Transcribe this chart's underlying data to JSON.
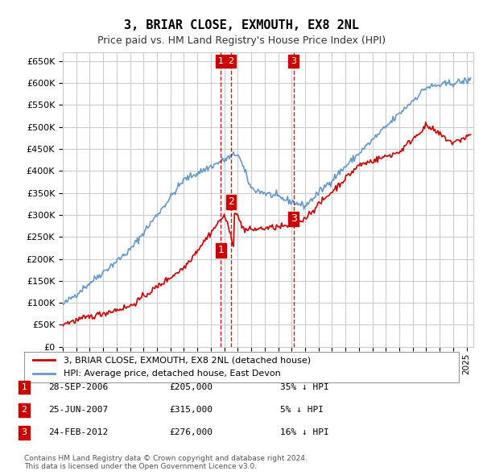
{
  "title": "3, BRIAR CLOSE, EXMOUTH, EX8 2NL",
  "subtitle": "Price paid vs. HM Land Registry's House Price Index (HPI)",
  "ylabel_ticks": [
    "£0",
    "£50K",
    "£100K",
    "£150K",
    "£200K",
    "£250K",
    "£300K",
    "£350K",
    "£400K",
    "£450K",
    "£500K",
    "£550K",
    "£600K",
    "£650K"
  ],
  "ytick_values": [
    0,
    50000,
    100000,
    150000,
    200000,
    250000,
    300000,
    350000,
    400000,
    450000,
    500000,
    550000,
    600000,
    650000
  ],
  "ylim": [
    0,
    670000
  ],
  "xlim_start": 1995.0,
  "xlim_end": 2025.5,
  "transactions": [
    {
      "num": 1,
      "date_x": 2006.75,
      "price": 205000,
      "label": "28-SEP-2006",
      "pct": "35%",
      "dir": "↓"
    },
    {
      "num": 2,
      "date_x": 2007.5,
      "price": 315000,
      "label": "25-JUN-2007",
      "pct": "5%",
      "dir": "↓"
    },
    {
      "num": 3,
      "date_x": 2012.15,
      "price": 276000,
      "label": "24-FEB-2012",
      "pct": "16%",
      "dir": "↓"
    }
  ],
  "legend_line1": "3, BRIAR CLOSE, EXMOUTH, EX8 2NL (detached house)",
  "legend_line2": "HPI: Average price, detached house, East Devon",
  "footnote": "Contains HM Land Registry data © Crown copyright and database right 2024.\nThis data is licensed under the Open Government Licence v3.0.",
  "property_color": "#cc0000",
  "hpi_color": "#6699cc",
  "grid_color": "#cccccc",
  "bg_color": "#ffffff",
  "vline_color": "#cc0000"
}
